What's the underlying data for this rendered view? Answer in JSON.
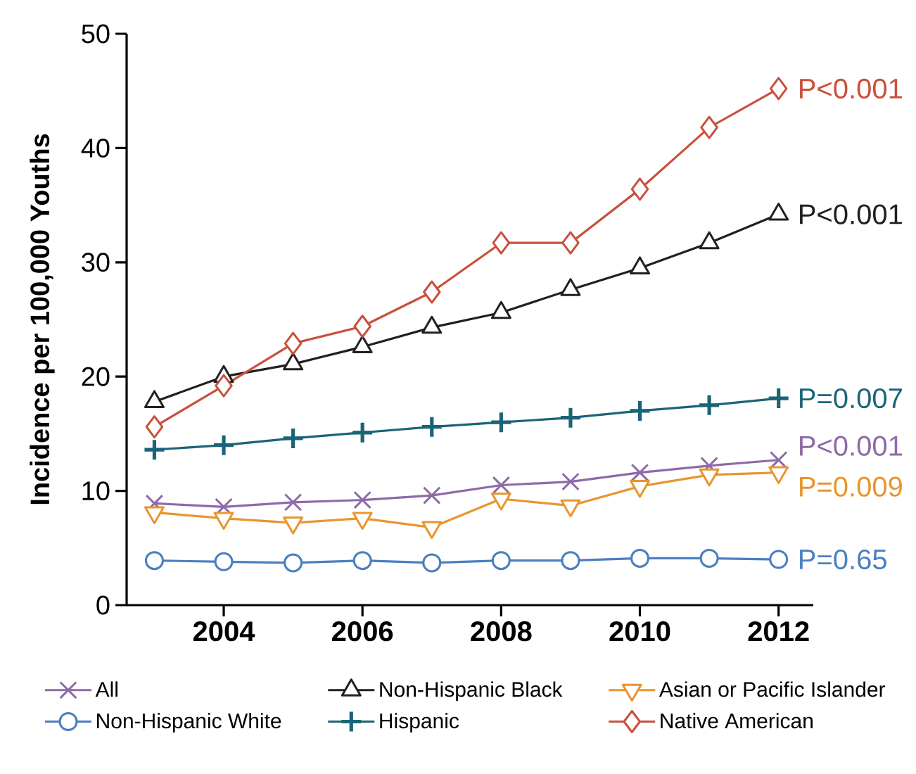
{
  "chart_data": {
    "type": "line",
    "ylabel": "Incidence per 100,000 Youths",
    "x": [
      2003,
      2004,
      2005,
      2006,
      2007,
      2008,
      2009,
      2010,
      2011,
      2012
    ],
    "xlim": [
      2002.6,
      2012.5
    ],
    "ylim": [
      0,
      50
    ],
    "xticks": [
      2004,
      2006,
      2008,
      2010,
      2012
    ],
    "yticks": [
      0,
      10,
      20,
      30,
      40,
      50
    ],
    "legend": "bottom",
    "series": [
      {
        "name": "All",
        "color": "#8e6aa8",
        "marker": "cross",
        "values": [
          8.9,
          8.6,
          9.0,
          9.2,
          9.6,
          10.5,
          10.8,
          11.6,
          12.2,
          12.7
        ]
      },
      {
        "name": "Non-Hispanic Black",
        "color": "#231f20",
        "marker": "triangle",
        "values": [
          17.8,
          20.0,
          21.1,
          22.6,
          24.3,
          25.6,
          27.6,
          29.5,
          31.7,
          34.2
        ]
      },
      {
        "name": "Asian or Pacific Islander",
        "color": "#e8962e",
        "marker": "triangle-down",
        "values": [
          8.1,
          7.6,
          7.2,
          7.6,
          6.8,
          9.3,
          8.7,
          10.4,
          11.4,
          11.6
        ]
      },
      {
        "name": "Non-Hispanic White",
        "color": "#4a7fc1",
        "marker": "circle",
        "values": [
          3.9,
          3.8,
          3.7,
          3.9,
          3.7,
          3.9,
          3.9,
          4.1,
          4.1,
          4.0
        ]
      },
      {
        "name": "Hispanic",
        "color": "#1b6478",
        "marker": "plus",
        "values": [
          13.6,
          14.0,
          14.6,
          15.1,
          15.6,
          16.0,
          16.4,
          17.0,
          17.5,
          18.1
        ]
      },
      {
        "name": "Native American",
        "color": "#c9503c",
        "marker": "diamond",
        "values": [
          15.6,
          19.2,
          22.9,
          24.4,
          27.4,
          31.7,
          31.7,
          36.4,
          41.8,
          45.2
        ]
      }
    ],
    "annotations": [
      "P<0.001",
      "P<0.001",
      "P=0.009",
      "P=0.65",
      "P=0.007",
      "P<0.001"
    ]
  }
}
